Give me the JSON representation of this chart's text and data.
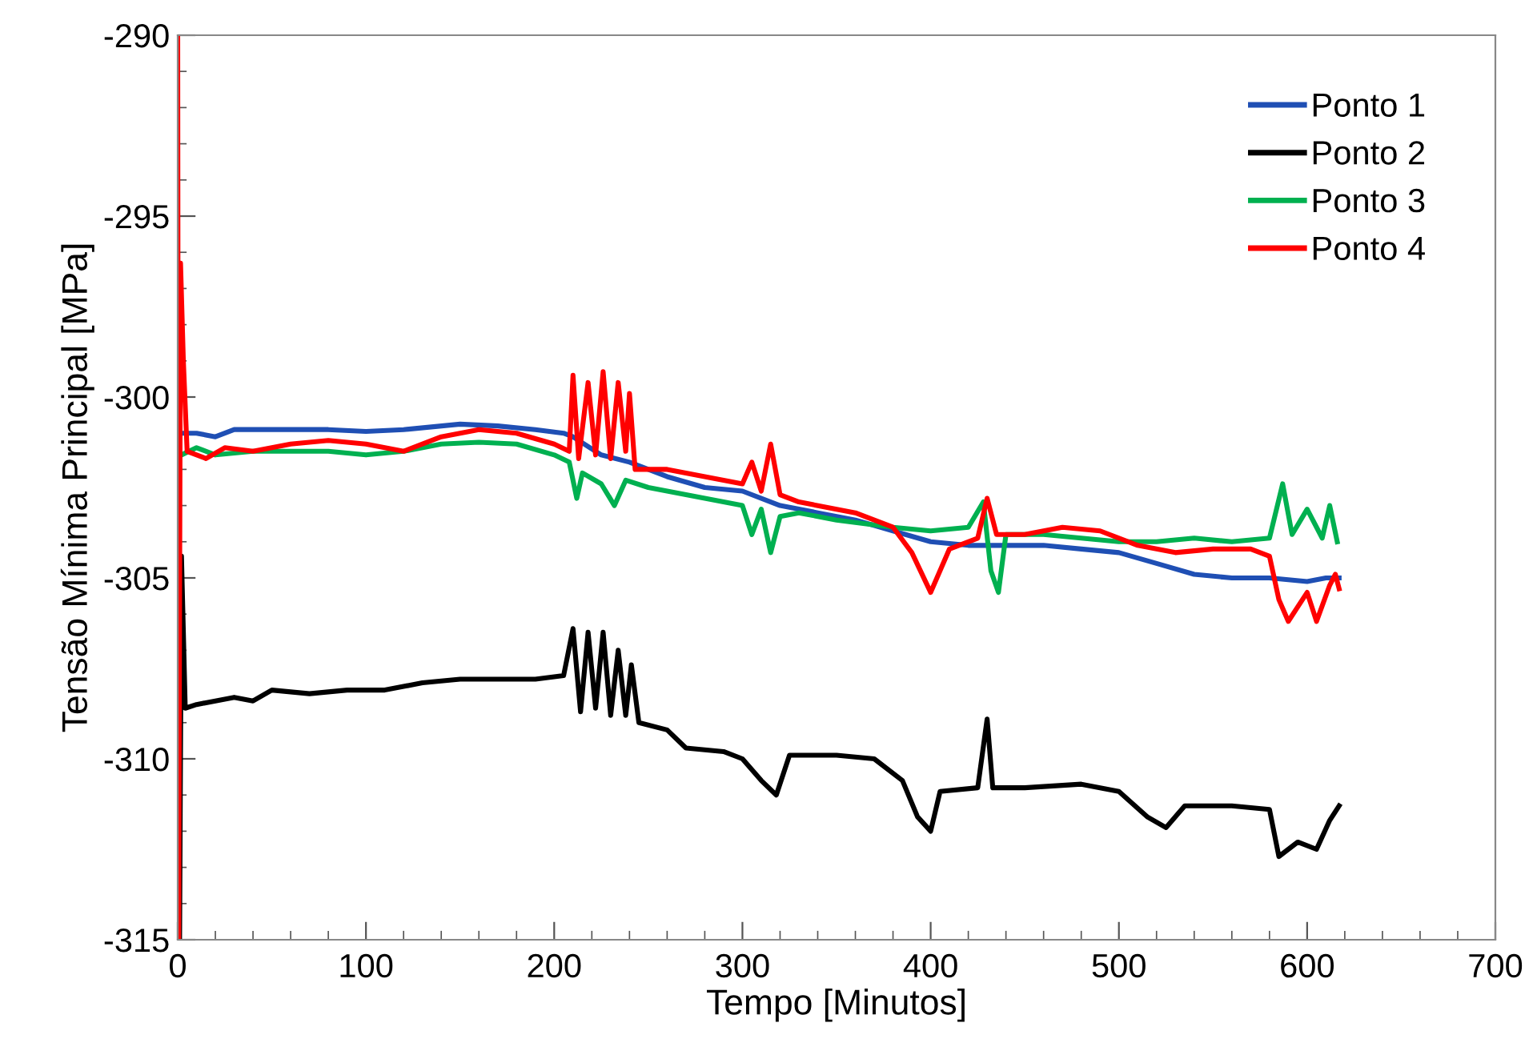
{
  "chart_data": {
    "type": "line",
    "xlabel": "Tempo [Minutos]",
    "ylabel": "Tensão Mínima Principal [MPa]",
    "xlim": [
      0,
      700
    ],
    "ylim": [
      -315,
      -290
    ],
    "xticks": [
      0,
      {
        "value": 20,
        "label": null
      },
      {
        "value": 40,
        "label": null
      },
      {
        "value": 60,
        "label": null
      },
      {
        "value": 80,
        "label": null
      },
      100,
      {
        "value": 120,
        "label": null
      },
      {
        "value": 140,
        "label": null
      },
      {
        "value": 160,
        "label": null
      },
      {
        "value": 180,
        "label": null
      },
      200,
      {
        "value": 220,
        "label": null
      },
      {
        "value": 240,
        "label": null
      },
      {
        "value": 260,
        "label": null
      },
      {
        "value": 280,
        "label": null
      },
      300,
      {
        "value": 320,
        "label": null
      },
      {
        "value": 340,
        "label": null
      },
      {
        "value": 360,
        "label": null
      },
      {
        "value": 380,
        "label": null
      },
      400,
      {
        "value": 420,
        "label": null
      },
      {
        "value": 440,
        "label": null
      },
      {
        "value": 460,
        "label": null
      },
      {
        "value": 480,
        "label": null
      },
      500,
      {
        "value": 520,
        "label": null
      },
      {
        "value": 540,
        "label": null
      },
      {
        "value": 560,
        "label": null
      },
      {
        "value": 580,
        "label": null
      },
      600,
      {
        "value": 620,
        "label": null
      },
      {
        "value": 640,
        "label": null
      },
      {
        "value": 660,
        "label": null
      },
      {
        "value": 680,
        "label": null
      },
      700
    ],
    "yticks": [
      -315,
      {
        "value": -314,
        "label": null
      },
      {
        "value": -313,
        "label": null
      },
      {
        "value": -312,
        "label": null
      },
      {
        "value": -311,
        "label": null
      },
      -310,
      {
        "value": -309,
        "label": null
      },
      {
        "value": -308,
        "label": null
      },
      {
        "value": -307,
        "label": null
      },
      {
        "value": -306,
        "label": null
      },
      -305,
      {
        "value": -304,
        "label": null
      },
      {
        "value": -303,
        "label": null
      },
      {
        "value": -302,
        "label": null
      },
      {
        "value": -301,
        "label": null
      },
      -300,
      {
        "value": -299,
        "label": null
      },
      {
        "value": -298,
        "label": null
      },
      {
        "value": -297,
        "label": null
      },
      {
        "value": -296,
        "label": null
      },
      -295,
      {
        "value": -294,
        "label": null
      },
      {
        "value": -293,
        "label": null
      },
      {
        "value": -292,
        "label": null
      },
      {
        "value": -291,
        "label": null
      },
      -290
    ],
    "grid": false,
    "legend": "top right",
    "marker": "none",
    "line_style": "solid",
    "series": [
      {
        "name": "Ponto 1",
        "color": "#1f4fb4",
        "x": [
          1,
          10,
          20,
          30,
          50,
          80,
          100,
          120,
          150,
          170,
          190,
          205,
          210,
          225,
          240,
          260,
          280,
          300,
          320,
          340,
          360,
          380,
          400,
          420,
          440,
          460,
          480,
          500,
          520,
          540,
          560,
          580,
          600,
          610,
          617
        ],
        "values": [
          -301.0,
          -301.0,
          -301.1,
          -300.9,
          -300.9,
          -300.9,
          -300.95,
          -300.9,
          -300.75,
          -300.8,
          -300.9,
          -301.0,
          -301.1,
          -301.6,
          -301.8,
          -302.2,
          -302.5,
          -302.6,
          -303.0,
          -303.2,
          -303.4,
          -303.7,
          -304.0,
          -304.1,
          -304.1,
          -304.1,
          -304.2,
          -304.3,
          -304.6,
          -304.9,
          -305.0,
          -305.0,
          -305.1,
          -305.0,
          -305.0
        ]
      },
      {
        "name": "Ponto 2",
        "color": "#000000",
        "x": [
          1,
          2,
          4,
          10,
          20,
          30,
          40,
          50,
          70,
          90,
          110,
          130,
          150,
          170,
          190,
          205,
          210,
          214,
          218,
          222,
          226,
          230,
          234,
          238,
          241,
          245,
          260,
          270,
          290,
          300,
          310,
          318,
          325,
          350,
          370,
          385,
          393,
          400,
          405,
          425,
          430,
          433,
          450,
          480,
          500,
          515,
          525,
          535,
          560,
          580,
          585,
          595,
          605,
          612,
          617
        ],
        "values": [
          -315,
          -304.4,
          -308.6,
          -308.5,
          -308.4,
          -308.3,
          -308.4,
          -308.1,
          -308.2,
          -308.1,
          -308.1,
          -307.9,
          -307.8,
          -307.8,
          -307.8,
          -307.7,
          -306.4,
          -308.7,
          -306.5,
          -308.6,
          -306.5,
          -308.8,
          -307.0,
          -308.8,
          -307.4,
          -309.0,
          -309.2,
          -309.7,
          -309.8,
          -310.0,
          -310.6,
          -311.0,
          -309.9,
          -309.9,
          -310.0,
          -310.6,
          -311.6,
          -312.0,
          -310.9,
          -310.8,
          -308.9,
          -310.8,
          -310.8,
          -310.7,
          -310.9,
          -311.6,
          -311.9,
          -311.3,
          -311.3,
          -311.4,
          -312.7,
          -312.3,
          -312.5,
          -311.7,
          -311.3
        ]
      },
      {
        "name": "Ponto 3",
        "color": "#00b050",
        "x": [
          2,
          10,
          20,
          40,
          60,
          80,
          100,
          120,
          140,
          160,
          180,
          200,
          208,
          212,
          215,
          225,
          232,
          238,
          250,
          270,
          290,
          300,
          305,
          310,
          315,
          320,
          330,
          350,
          380,
          400,
          420,
          428,
          432,
          436,
          440,
          460,
          480,
          500,
          520,
          540,
          560,
          580,
          587,
          592,
          600,
          608,
          612,
          616
        ],
        "values": [
          -301.6,
          -301.4,
          -301.6,
          -301.5,
          -301.5,
          -301.5,
          -301.6,
          -301.5,
          -301.3,
          -301.25,
          -301.3,
          -301.6,
          -301.8,
          -302.8,
          -302.1,
          -302.4,
          -303.0,
          -302.3,
          -302.5,
          -302.7,
          -302.9,
          -303.0,
          -303.8,
          -303.1,
          -304.3,
          -303.3,
          -303.2,
          -303.4,
          -303.6,
          -303.7,
          -303.6,
          -302.9,
          -304.8,
          -305.4,
          -303.8,
          -303.8,
          -303.9,
          -304.0,
          -304.0,
          -303.9,
          -304.0,
          -303.9,
          -302.4,
          -303.8,
          -303.1,
          -303.9,
          -303.0,
          -304.0
        ]
      },
      {
        "name": "Ponto 4",
        "color": "#ff0000",
        "x": [
          0,
          0.5,
          1.5,
          3,
          5,
          15,
          25,
          40,
          60,
          80,
          100,
          120,
          140,
          160,
          180,
          200,
          208,
          210,
          213,
          218,
          222,
          226,
          230,
          234,
          238,
          240,
          243,
          260,
          280,
          300,
          305,
          310,
          315,
          320,
          330,
          360,
          380,
          390,
          400,
          410,
          425,
          430,
          435,
          450,
          470,
          490,
          510,
          530,
          550,
          570,
          580,
          585,
          590,
          600,
          605,
          612,
          615,
          617
        ],
        "values": [
          -290,
          -315,
          -296.3,
          -299,
          -301.5,
          -301.7,
          -301.4,
          -301.5,
          -301.3,
          -301.2,
          -301.3,
          -301.5,
          -301.1,
          -300.9,
          -301.0,
          -301.3,
          -301.5,
          -299.4,
          -301.7,
          -299.6,
          -301.6,
          -299.3,
          -301.7,
          -299.6,
          -301.5,
          -299.9,
          -302.0,
          -302.0,
          -302.2,
          -302.4,
          -301.8,
          -302.6,
          -301.3,
          -302.7,
          -302.9,
          -303.2,
          -303.6,
          -304.3,
          -305.4,
          -304.2,
          -303.9,
          -302.8,
          -303.8,
          -303.8,
          -303.6,
          -303.7,
          -304.1,
          -304.3,
          -304.2,
          -304.2,
          -304.4,
          -305.6,
          -306.2,
          -305.4,
          -306.2,
          -305.2,
          -304.9,
          -305.3
        ]
      }
    ]
  }
}
